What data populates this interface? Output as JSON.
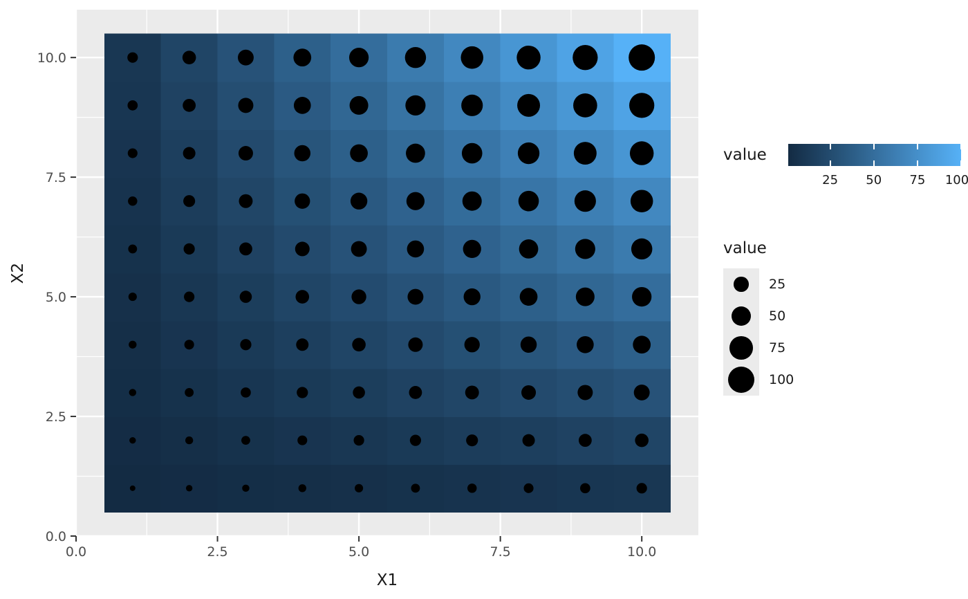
{
  "chart_data": {
    "type": "heatmap",
    "title": "",
    "xlabel": "X1",
    "ylabel": "X2",
    "x": [
      1,
      2,
      3,
      4,
      5,
      6,
      7,
      8,
      9,
      10
    ],
    "y": [
      1,
      2,
      3,
      4,
      5,
      6,
      7,
      8,
      9,
      10
    ],
    "values": [
      [
        1,
        2,
        3,
        4,
        5,
        6,
        7,
        8,
        9,
        10
      ],
      [
        2,
        4,
        6,
        8,
        10,
        12,
        14,
        16,
        18,
        20
      ],
      [
        3,
        6,
        9,
        12,
        15,
        18,
        21,
        24,
        27,
        30
      ],
      [
        4,
        8,
        12,
        16,
        20,
        24,
        28,
        32,
        36,
        40
      ],
      [
        5,
        10,
        15,
        20,
        25,
        30,
        35,
        40,
        45,
        50
      ],
      [
        6,
        12,
        18,
        24,
        30,
        36,
        42,
        48,
        54,
        60
      ],
      [
        7,
        14,
        21,
        28,
        35,
        42,
        49,
        56,
        63,
        70
      ],
      [
        8,
        16,
        24,
        32,
        40,
        48,
        56,
        64,
        72,
        80
      ],
      [
        9,
        18,
        27,
        36,
        45,
        54,
        63,
        72,
        81,
        90
      ],
      [
        10,
        20,
        30,
        40,
        50,
        60,
        70,
        80,
        90,
        100
      ]
    ],
    "value_note": "value = X1 * X2, encoded both as tile fill colour and as point size",
    "x_range": [
      0,
      11
    ],
    "y_range": [
      0,
      11
    ],
    "x_ticks": {
      "values": [
        0,
        2.5,
        5,
        7.5,
        10
      ],
      "labels": [
        "0.0",
        "2.5",
        "5.0",
        "7.5",
        "10.0"
      ]
    },
    "y_ticks": {
      "values": [
        0,
        2.5,
        5,
        7.5,
        10
      ],
      "labels": [
        "0.0",
        "2.5",
        "5.0",
        "7.5",
        "10.0"
      ]
    },
    "panel_color": "#EBEBEB",
    "grid_color": "#FFFFFF",
    "point_color": "#000000",
    "tick_mark_color": "#333333",
    "tick_label_color": "#4D4D4D",
    "fill_scale": {
      "low": "#132B43",
      "high": "#56B1F7",
      "limits": [
        1,
        100
      ]
    },
    "legends": {
      "fill": {
        "title": "value",
        "tick_values": [
          25,
          50,
          75,
          100
        ],
        "tick_labels": [
          "25",
          "50",
          "75",
          "100"
        ]
      },
      "size": {
        "title": "value",
        "entries": [
          {
            "label": "25",
            "value": 25
          },
          {
            "label": "50",
            "value": 50
          },
          {
            "label": "75",
            "value": 75
          },
          {
            "label": "100",
            "value": 100
          }
        ]
      }
    }
  }
}
